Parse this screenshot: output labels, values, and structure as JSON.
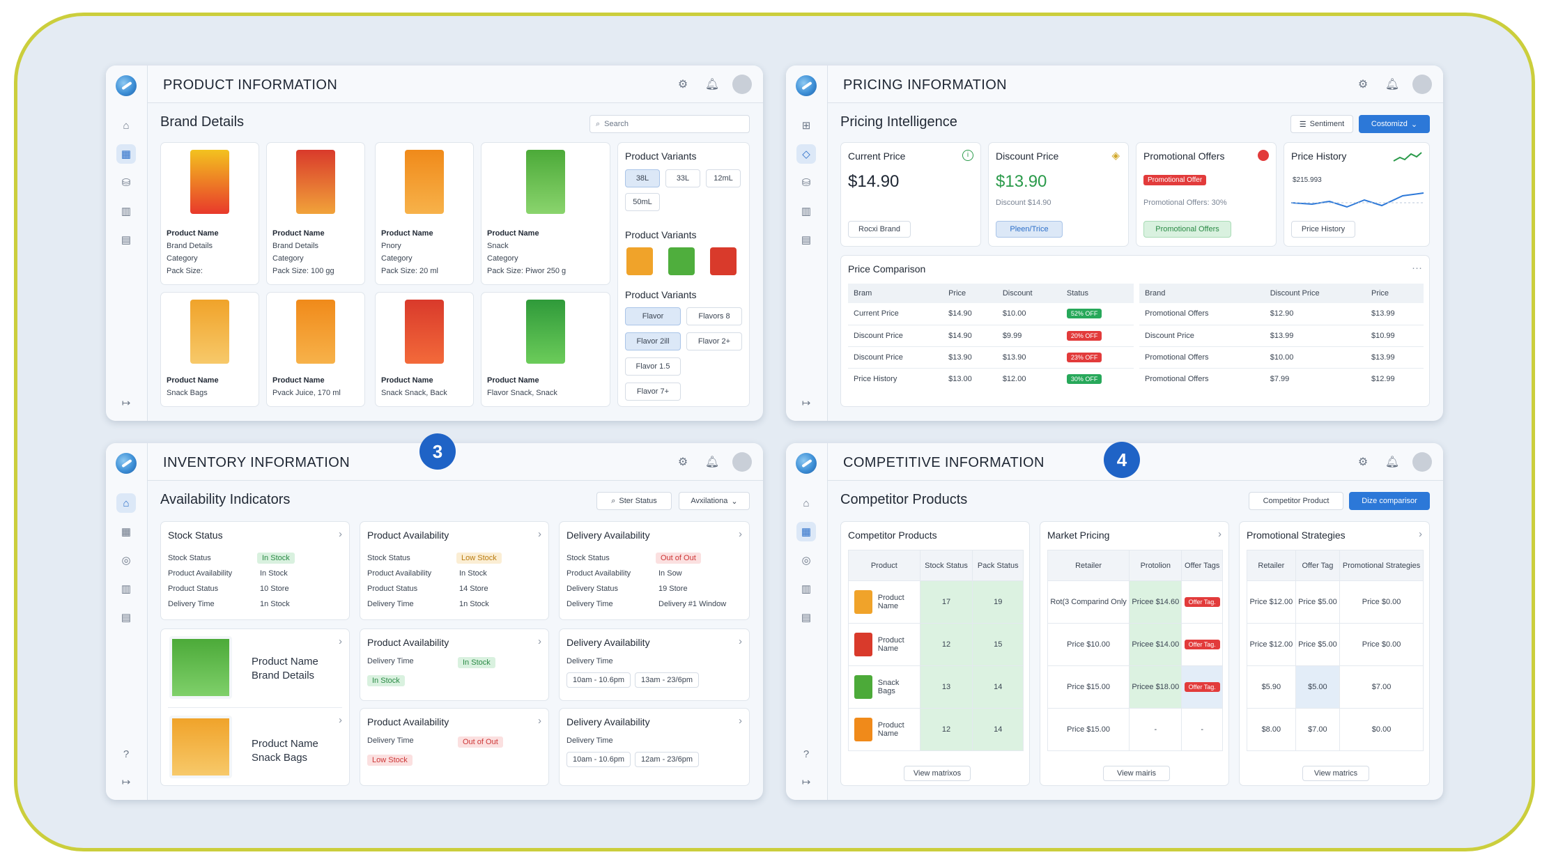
{
  "product": {
    "title": "PRODUCT INFORMATION",
    "subtitle": "Brand Details",
    "search_placeholder": "Search",
    "items": [
      {
        "lines": [
          "Product Name",
          "Brand Details",
          "Category",
          "Pack Size:"
        ]
      },
      {
        "lines": [
          "Product Name",
          "Brand Details",
          "Category",
          "Pack Size: 100 gg"
        ]
      },
      {
        "lines": [
          "Product Name",
          "Pnory",
          "Category",
          "Pack Size: 20 ml"
        ]
      },
      {
        "lines": [
          "Product Name",
          "Snack",
          "Category",
          "Pack Size: Piwor 250 g"
        ]
      },
      {
        "lines": [
          "Product Name",
          "Snack Bags"
        ]
      },
      {
        "lines": [
          "Product Name",
          "Pvack Juice, 170 ml"
        ]
      },
      {
        "lines": [
          "Product Name",
          "Snack Snack, Back"
        ]
      },
      {
        "lines": [
          "Product Name",
          "Flavor Snack, Snack"
        ]
      }
    ],
    "variants": {
      "title1": "Product Variants",
      "sizes": [
        "38L",
        "33L",
        "12mL",
        "50mL"
      ],
      "title2": "Product Variants",
      "title3": "Product Variants",
      "flavors": [
        "Flavor",
        "Flavors 8",
        "Flavor 2ill",
        "Flavor 2+",
        "Flavor 1.5",
        "Flavor 7+"
      ]
    }
  },
  "pricing": {
    "title": "PRICING INFORMATION",
    "subtitle": "Pricing Intelligence",
    "btn_sentiment": "Sentiment",
    "btn_customize": "Costomizd",
    "cards": [
      {
        "title": "Current Price",
        "value": "$14.90",
        "btn": "Rocxi Brand"
      },
      {
        "title": "Discount Price",
        "value": "$13.90",
        "note": "Discount $14.90",
        "btn": "Pleen/Trice"
      },
      {
        "title": "Promotional Offers",
        "badge": "Promotional Offer",
        "note": "Promotional Offers: 30%",
        "btn": "Promotional Offers"
      },
      {
        "title": "Price History",
        "value": "$215.993",
        "btn": "Price History"
      }
    ],
    "comparison": {
      "title": "Price Comparison",
      "more": "···",
      "left_headers": [
        "Bram",
        "Price",
        "Discount",
        "Status"
      ],
      "left_rows": [
        [
          "Current Price",
          "$14.90",
          "$10.00",
          "52% OFF"
        ],
        [
          "Discount Price",
          "$14.90",
          "$9.99",
          "20% OFF"
        ],
        [
          "Discount Price",
          "$13.90",
          "$13.90",
          "23% OFF"
        ],
        [
          "Price History",
          "$13.00",
          "$12.00",
          "30% OFF"
        ]
      ],
      "right_headers": [
        "Brand",
        "Discount Price",
        "Price"
      ],
      "right_rows": [
        [
          "Promotional Offers",
          "$12.90",
          "$13.99"
        ],
        [
          "Discount Price",
          "$13.99",
          "$10.99"
        ],
        [
          "Promotional Offers",
          "$10.00",
          "$13.99"
        ],
        [
          "Promotional Offers",
          "$7.99",
          "$12.99"
        ]
      ]
    }
  },
  "inventory": {
    "title": "INVENTORY INFORMATION",
    "badge": "3",
    "subtitle": "Availability Indicators",
    "filter_status": "Ster Status",
    "filter_avail": "Avxilationa",
    "top_cards": [
      {
        "title": "Stock Status",
        "rows": [
          [
            "Stock Status",
            "In Stock"
          ],
          [
            "Product Availability",
            "In Stock"
          ],
          [
            "Product Status",
            "10 Store"
          ],
          [
            "Delivery Time",
            "1n Stock"
          ]
        ]
      },
      {
        "title": "Product Availability",
        "rows": [
          [
            "Stock Status",
            "Low Stock"
          ],
          [
            "Product Availability",
            "In Stock"
          ],
          [
            "Product Status",
            "14 Store"
          ],
          [
            "Delivery Time",
            "1n Stock"
          ]
        ]
      },
      {
        "title": "Delivery Availability",
        "rows": [
          [
            "Stock Status",
            "Out of Out"
          ],
          [
            "Product Availability",
            "In Sow"
          ],
          [
            "Delivery Status",
            "19 Store"
          ],
          [
            "Delivery Time",
            "Delivery #1 Window"
          ]
        ]
      }
    ],
    "products": [
      {
        "name": "Product Name",
        "detail": "Brand Details"
      },
      {
        "name": "Product Name",
        "detail": "Snack Bags"
      }
    ],
    "pa1": {
      "title": "Product Availability",
      "label": "Delivery Time",
      "status": "In Stock",
      "tag": "In Stock"
    },
    "pa2": {
      "title": "Product Availability",
      "label": "Delivery Time",
      "status": "Out of Out",
      "tag": "Low Stock"
    },
    "da1": {
      "title": "Delivery Availability",
      "label": "Delivery Time",
      "slots": [
        "10am - 10.6pm",
        "13am - 23/6pm"
      ]
    },
    "da2": {
      "title": "Delivery Availability",
      "label": "Delivery Time",
      "slots": [
        "10am - 10.6pm",
        "12am - 23/6pm"
      ]
    }
  },
  "competitive": {
    "title": "COMPETITIVE INFORMATION",
    "badge": "4",
    "subtitle": "Competitor Products",
    "btn_product": "Competitor Product",
    "btn_compare": "Dize comparisor",
    "cp": {
      "title": "Competitor Products",
      "headers": [
        "Product",
        "Stock Status",
        "Pack Status"
      ],
      "rows": [
        [
          "Product Name",
          "17",
          "19"
        ],
        [
          "Product Name",
          "12",
          "15"
        ],
        [
          "Snack Bags",
          "13",
          "14"
        ],
        [
          "Product Name",
          "12",
          "14"
        ]
      ],
      "link": "View matrixos"
    },
    "mp": {
      "title": "Market Pricing",
      "headers": [
        "Retailer",
        "Protolion",
        "Offer Tags"
      ],
      "rows": [
        [
          "Rot(3 Comparind Only",
          "Pricee $14.60",
          "Offer Tag."
        ],
        [
          "Price $10.00",
          "Pricee $14.00",
          "Offer Tag."
        ],
        [
          "Price $15.00",
          "Pricee $18.00",
          "Offer Tag."
        ],
        [
          "Price $15.00",
          "-",
          "-"
        ]
      ],
      "link": "View mairis"
    },
    "ps": {
      "title": "Promotional Strategies",
      "headers": [
        "Retailer",
        "Offer Tag",
        "Promotional Strategies"
      ],
      "rows": [
        [
          "Price $12.00",
          "Price $5.00",
          "Price $0.00"
        ],
        [
          "Price $12.00",
          "Price $5.00",
          "Price $0.00"
        ],
        [
          "$5.90",
          "$5.00",
          "$7.00"
        ],
        [
          "$8.00",
          "$7.00",
          "$0.00"
        ]
      ],
      "link": "View matrics"
    }
  },
  "colors": {
    "accent": "#2c78d8",
    "frame": "#cbce3c",
    "badge": "#1f63c6"
  }
}
